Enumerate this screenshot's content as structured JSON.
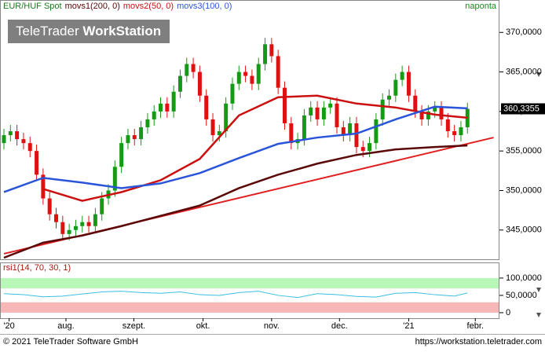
{
  "chart_data": {
    "type": "candlestick",
    "title": "EUR/HUF Spot",
    "interval": "naponta",
    "watermark": {
      "brand": "TeleTrader",
      "product": "WorkStation"
    },
    "candles": {
      "open": [
        356.0,
        357,
        357.5,
        356.5,
        356,
        355,
        352,
        349,
        347,
        346,
        344.5,
        345,
        345.5,
        346,
        345.5,
        347,
        349,
        350,
        353,
        356,
        357,
        356.5,
        358,
        359,
        360,
        361,
        360,
        362.5,
        364.5,
        366,
        365,
        362,
        359,
        357,
        357.5,
        361,
        363.5,
        365,
        364.5,
        363.5,
        366,
        368.5,
        367,
        363,
        358.5,
        356,
        356.5,
        359.5,
        360.5,
        359,
        360.5,
        361,
        358,
        357,
        358.5,
        355.5,
        355,
        356,
        359,
        361.5,
        362,
        364,
        365,
        362,
        360,
        359,
        360,
        360.5,
        359,
        357.5,
        357,
        358
      ],
      "high": [
        357.8,
        358.3,
        358.3,
        357.3,
        356.8,
        355.8,
        352.8,
        349.8,
        347.8,
        346.8,
        345.8,
        346.3,
        346.8,
        346.8,
        347.8,
        349.8,
        350.8,
        353.8,
        356.8,
        357.8,
        357.8,
        358.8,
        359.8,
        360.8,
        361.8,
        361.8,
        363.3,
        365.3,
        366.8,
        366.8,
        365.8,
        362.8,
        359.8,
        358.3,
        361.8,
        364.3,
        365.8,
        365.8,
        365.3,
        366.8,
        369.3,
        369.3,
        367.8,
        363.8,
        359.3,
        357.3,
        360.3,
        361.3,
        361.3,
        361.3,
        361.8,
        361.8,
        358.8,
        359.3,
        359.3,
        356.3,
        356.8,
        359.8,
        362.3,
        362.8,
        364.8,
        365.8,
        365.8,
        362.8,
        360.8,
        360.8,
        361.3,
        361.3,
        359.8,
        358.3,
        358.8,
        361.1
      ],
      "low": [
        355.2,
        356.2,
        355.7,
        355.2,
        354.2,
        351.2,
        348.2,
        346.2,
        345.2,
        343.7,
        343.7,
        344.2,
        344.7,
        344.7,
        344.7,
        346.2,
        348.2,
        349.2,
        352.2,
        355.2,
        355.7,
        355.7,
        357.2,
        358.2,
        359.2,
        359.2,
        359.2,
        361.7,
        363.7,
        364.2,
        361.2,
        358.2,
        356.2,
        356.2,
        356.7,
        360.2,
        362.7,
        363.7,
        362.7,
        362.7,
        365.2,
        366.2,
        362.2,
        357.7,
        355.2,
        355.2,
        355.7,
        358.7,
        358.2,
        358.2,
        359.7,
        357.2,
        356.2,
        356.2,
        354.7,
        354.2,
        354.2,
        355.2,
        358.2,
        360.7,
        361.2,
        363.2,
        361.2,
        359.2,
        358.2,
        358.2,
        359.2,
        358.2,
        356.7,
        356.2,
        356.2,
        357.2
      ],
      "close": [
        357,
        357.5,
        356.5,
        356,
        355,
        352,
        349,
        347,
        346,
        344.5,
        345,
        345.5,
        346,
        345.5,
        347,
        349,
        350,
        353,
        356,
        357,
        356.5,
        358,
        359,
        360,
        361,
        360,
        362.5,
        364.5,
        366,
        365,
        362,
        359,
        357,
        357.5,
        361,
        363.5,
        365,
        364.5,
        363.5,
        366,
        368.5,
        367,
        363,
        358.5,
        356,
        356.5,
        359.5,
        360.5,
        359,
        360.5,
        361,
        358,
        357,
        358.5,
        355.5,
        355,
        356,
        359,
        361.5,
        362,
        364,
        365,
        362,
        360,
        359,
        360,
        360.5,
        359,
        357.5,
        357,
        358,
        360.3355
      ],
      "up_color": "#159a15",
      "down_color": "#e01010",
      "last_label": "360,3355"
    },
    "series": [
      {
        "name": "movs1(200, 0)",
        "color": "#5a0808",
        "x": [
          0,
          6,
          12,
          18,
          24,
          30,
          36,
          42,
          48,
          54,
          60,
          66,
          71
        ],
        "values": [
          341.5,
          343.4,
          344.3,
          345.5,
          346.8,
          348.1,
          350.3,
          352.0,
          353.4,
          354.5,
          355.2,
          355.5,
          355.7
        ]
      },
      {
        "name": "movs2(50, 0)",
        "color": "#cc1010",
        "x": [
          0,
          6,
          12,
          18,
          24,
          30,
          36,
          42,
          48,
          54,
          60,
          66,
          71
        ],
        "values": [
          null,
          350.2,
          348.7,
          349.8,
          351.3,
          354.0,
          359.5,
          361.8,
          362.0,
          361.0,
          360.5,
          359.6,
          359.2
        ]
      },
      {
        "name": "movs3(100, 0)",
        "color": "#2a55d8",
        "x": [
          0,
          6,
          12,
          18,
          24,
          30,
          36,
          42,
          48,
          54,
          60,
          66,
          71
        ],
        "values": [
          349.8,
          351.6,
          351.0,
          350.3,
          350.9,
          352.2,
          354.1,
          355.9,
          356.7,
          357.2,
          359.0,
          360.6,
          360.4
        ]
      }
    ],
    "trendline": {
      "color": "#e02020",
      "x": [
        0,
        75
      ],
      "values": [
        342.0,
        356.7
      ]
    },
    "xlim": [
      -0.6,
      75.9
    ],
    "xticks": [
      {
        "value": 0.8,
        "label": "'20"
      },
      {
        "value": 9.5,
        "label": "aug."
      },
      {
        "value": 19.9,
        "label": "szept."
      },
      {
        "value": 30.5,
        "label": "okt."
      },
      {
        "value": 41,
        "label": "nov."
      },
      {
        "value": 51.4,
        "label": "dec."
      },
      {
        "value": 62,
        "label": "'21"
      },
      {
        "value": 72.2,
        "label": "febr."
      }
    ],
    "ylim": [
      341.3,
      374.1
    ],
    "yticks": [
      {
        "value": 345,
        "label": "345,0000"
      },
      {
        "value": 350,
        "label": "350,0000"
      },
      {
        "value": 355,
        "label": "355,0000"
      },
      {
        "value": 360,
        "label": "360,0000"
      },
      {
        "value": 365,
        "label": "365,0000"
      },
      {
        "value": 370,
        "label": "370,0000"
      }
    ],
    "rsi": {
      "type": "line",
      "name": "rsi1(14, 70, 30, 1)",
      "color": "#3cbfe0",
      "x": [
        0,
        3,
        6,
        9,
        12,
        15,
        18,
        21,
        24,
        27,
        30,
        33,
        36,
        39,
        42,
        45,
        48,
        51,
        54,
        57,
        60,
        63,
        66,
        69,
        71
      ],
      "values": [
        55,
        52,
        46,
        48,
        54,
        60,
        62,
        58,
        56,
        60,
        52,
        50,
        58,
        62,
        50,
        44,
        55,
        52,
        47,
        45,
        56,
        58,
        52,
        48,
        57
      ],
      "ylim": [
        -16,
        143
      ],
      "yticks": [
        {
          "value": 100,
          "label": "100,0000"
        },
        {
          "value": 50,
          "label": "50,0000"
        },
        0
      ],
      "bands": [
        {
          "range": [
            70,
            100
          ],
          "color": "#b9f7b9"
        },
        {
          "range": [
            0,
            30
          ],
          "color": "#f8b7b7"
        }
      ]
    }
  },
  "footer": {
    "copyright": "© 2021 TeleTrader Software GmbH",
    "url": "https://workstation.teletrader.com"
  }
}
